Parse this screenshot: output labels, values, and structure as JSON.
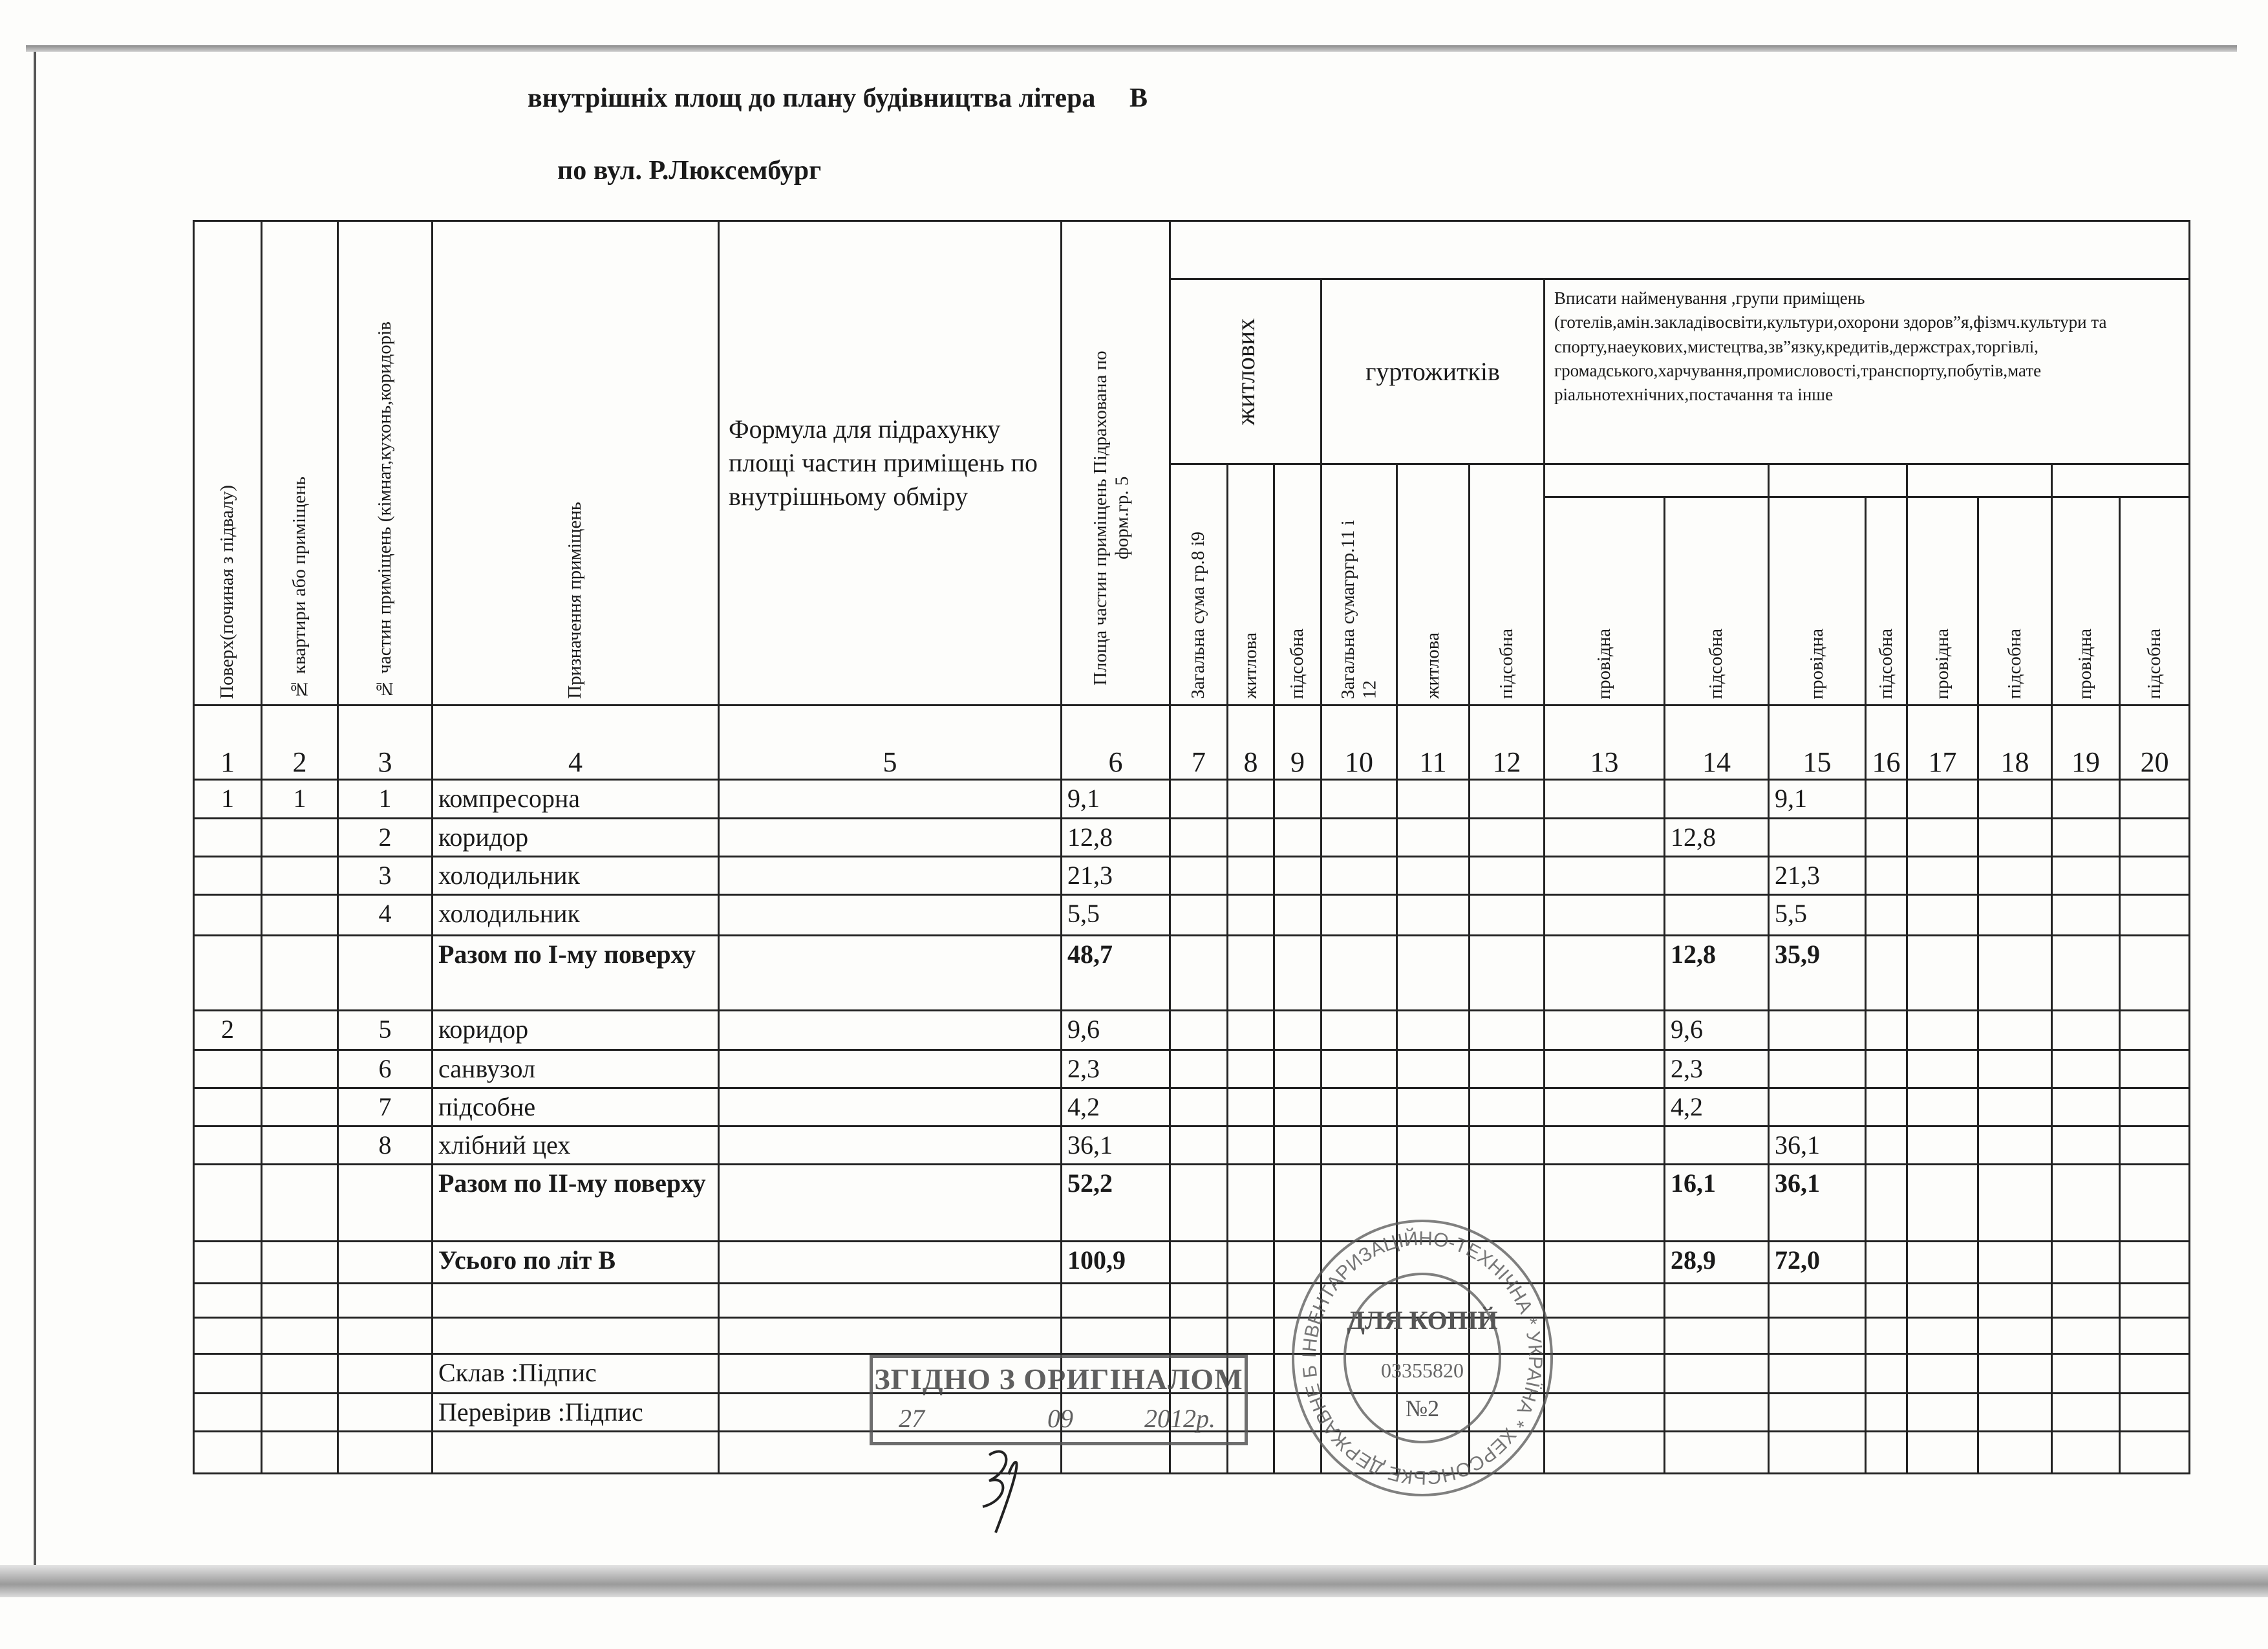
{
  "header": {
    "title": "внутрішніх площ до плану будівництва літера",
    "letter": "В",
    "subtitle": "по вул.  Р.Люксембург"
  },
  "columns": {
    "c1": "Поверх(починая  з підвалу)",
    "c2": "№ квартири або приміщень",
    "c3": "№ частин приміщень (кімнат,кухонь,коридорів",
    "c4": "Призначення приміщень",
    "c5": "Формула для підрахунку площі частин приміщень по внутрішньому обміру",
    "c6": "Площа частин приміщень Підрахована по форм.гр. 5",
    "group_residential": "житлових",
    "group_dormitory": "гуртожитків",
    "group_other": "Вписати найменування ,групи приміщень (готелів,амін.закладівосвіти,культури,охорони здоров”я,фізмч.культури та спорту,наеукових,мистецтва,зв”язку,кредитів,держстрах,торгівлі, громадського,харчування,промисловості,транспорту,побутів,мате ріальнотехнічних,постачання та інше",
    "c7": "Загальна сума гр.8 і9",
    "c8": "житлова",
    "c9": "підсобна",
    "c10": "Загальна сумагргр.11 і 12",
    "c11": "житлова",
    "c12": "підсобна",
    "c13": "провідна",
    "c14": "підсобна",
    "c15": "провідна",
    "c16": "підсобна",
    "c17": "провідна",
    "c18": "підсобна",
    "c19": "провідна",
    "c20": "підсобна"
  },
  "column_numbers": [
    "1",
    "2",
    "3",
    "4",
    "5",
    "6",
    "7",
    "8",
    "9",
    "10",
    "11",
    "12",
    "13",
    "14",
    "15",
    "16",
    "17",
    "18",
    "19",
    "20"
  ],
  "rows": [
    {
      "floor": "1",
      "apt": "1",
      "room": "1",
      "name": "компресорна",
      "area": "9,1",
      "c14": "",
      "c15": "9,1",
      "bold": false
    },
    {
      "floor": "",
      "apt": "",
      "room": "2",
      "name": "коридор",
      "area": "12,8",
      "c14": "12,8",
      "c15": "",
      "bold": false
    },
    {
      "floor": "",
      "apt": "",
      "room": "3",
      "name": "холодильник",
      "area": "21,3",
      "c14": "",
      "c15": "21,3",
      "bold": false
    },
    {
      "floor": "",
      "apt": "",
      "room": "4",
      "name": "холодильник",
      "area": "5,5",
      "c14": "",
      "c15": "5,5",
      "bold": false
    },
    {
      "floor": "",
      "apt": "",
      "room": "",
      "name": "Разом по І-му поверху",
      "area": "48,7",
      "c14": "12,8",
      "c15": "35,9",
      "bold": true
    },
    {
      "floor": "2",
      "apt": "",
      "room": "5",
      "name": "коридор",
      "area": "9,6",
      "c14": "9,6",
      "c15": "",
      "bold": false
    },
    {
      "floor": "",
      "apt": "",
      "room": "6",
      "name": "санвузол",
      "area": "2,3",
      "c14": "2,3",
      "c15": "",
      "bold": false
    },
    {
      "floor": "",
      "apt": "",
      "room": "7",
      "name": "підсобне",
      "area": "4,2",
      "c14": "4,2",
      "c15": "",
      "bold": false
    },
    {
      "floor": "",
      "apt": "",
      "room": "8",
      "name": "хлібний цех",
      "area": "36,1",
      "c14": "",
      "c15": "36,1",
      "bold": false
    },
    {
      "floor": "",
      "apt": "",
      "room": "",
      "name": "Разом по ІІ-му поверху",
      "area": "52,2",
      "c14": "16,1",
      "c15": "36,1",
      "bold": true
    },
    {
      "floor": "",
      "apt": "",
      "room": "",
      "name": "Усього по літ В",
      "area": "100,9",
      "c14": "28,9",
      "c15": "72,0",
      "bold": true
    },
    {
      "floor": "",
      "apt": "",
      "room": "",
      "name": "",
      "area": "",
      "c14": "",
      "c15": "",
      "bold": false
    },
    {
      "floor": "",
      "apt": "",
      "room": "",
      "name": "",
      "area": "",
      "c14": "",
      "c15": "",
      "bold": false
    },
    {
      "floor": "",
      "apt": "",
      "room": "",
      "name": "Склав :Підпис",
      "area": "",
      "c14": "",
      "c15": "",
      "bold": false
    },
    {
      "floor": "",
      "apt": "",
      "room": "",
      "name": "Перевірив :Підпис",
      "area": "",
      "c14": "",
      "c15": "",
      "bold": false
    },
    {
      "floor": "",
      "apt": "",
      "room": "",
      "name": "",
      "area": "",
      "c14": "",
      "c15": "",
      "bold": false
    }
  ],
  "stamps": {
    "certified": "ЗГІДНО З ОРИГІНАЛОМ",
    "certified_day": "27",
    "certified_month": "09",
    "certified_year": "2012р.",
    "round_outer": "ІНВЕНТАРИЗАЦІЙНО-ТЕХНІЧНА * УКРАЇНА * ХЕРСОНСЬКЕ ДЕРЖАВНЕ БЮРО ТЕХНІЧНОЇ",
    "round_center": "ДЛЯ КОПІЙ",
    "round_code": "03355820",
    "round_number": "№2"
  }
}
